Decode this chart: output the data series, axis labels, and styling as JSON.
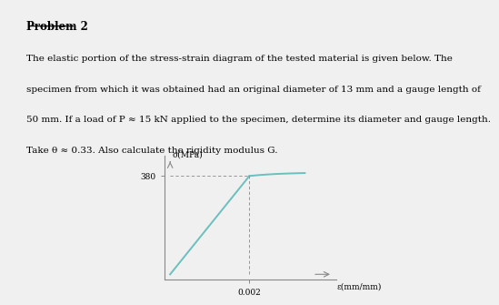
{
  "title": "Problem 2",
  "body_text_line1": "The elastic portion of the stress-strain diagram of the tested material is given below. The",
  "body_text_line2": "specimen from which it was obtained had an original diameter of 13 mm and a gauge length of",
  "body_text_line3": "50 mm. If a load of P ≈ 15 kN applied to the specimen, determine its diameter and gauge length.",
  "body_text_line4": "Take θ ≈ 0.33. Also calculate the rigidity modulus G.",
  "ylabel": "σ(MPa)",
  "xlabel": "ε(mm/mm)",
  "y_tick_val": 380,
  "x_tick_val": 0.002,
  "curve_color": "#6bbfbf",
  "axes_color": "#888888",
  "background_color": "#f0f0f0",
  "title_fontsize": 8.5,
  "body_fontsize": 7.5,
  "axis_label_fontsize": 6.5,
  "tick_fontsize": 6.5
}
